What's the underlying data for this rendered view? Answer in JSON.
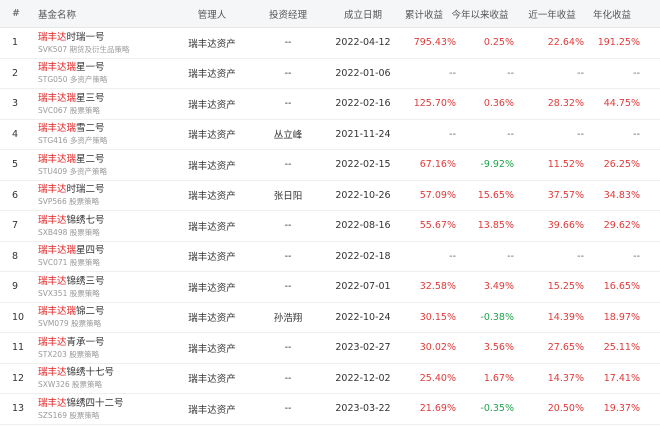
{
  "headers": {
    "idx": "#",
    "name": "基金名称",
    "manager": "管理人",
    "pm": "投资经理",
    "date": "成立日期",
    "cum": "累计收益",
    "ytd": "今年以来收益",
    "yr": "近一年收益",
    "ann": "年化收益"
  },
  "colors": {
    "positive": "#e03a3a",
    "negative": "#1ea34a",
    "highlight": "#e02020"
  },
  "rows": [
    {
      "idx": "1",
      "hl": "瑞丰达",
      "rest": "时瑞一号",
      "code": "SVK507",
      "strategy": "期货及衍生品策略",
      "manager": "瑞丰达资产",
      "pm": "--",
      "date": "2022-04-12",
      "cum": "795.43%",
      "ytd": "0.25%",
      "yr": "22.64%",
      "ann": "191.25%"
    },
    {
      "idx": "2",
      "hl": "瑞丰达瑞",
      "rest": "星一号",
      "code": "STG050",
      "strategy": "多资产策略",
      "manager": "瑞丰达资产",
      "pm": "--",
      "date": "2022-01-06",
      "cum": "--",
      "ytd": "--",
      "yr": "--",
      "ann": "--"
    },
    {
      "idx": "3",
      "hl": "瑞丰达瑞",
      "rest": "星三号",
      "code": "SVC067",
      "strategy": "股票策略",
      "manager": "瑞丰达资产",
      "pm": "--",
      "date": "2022-02-16",
      "cum": "125.70%",
      "ytd": "0.36%",
      "yr": "28.32%",
      "ann": "44.75%"
    },
    {
      "idx": "4",
      "hl": "瑞丰达瑞",
      "rest": "雪二号",
      "code": "STG416",
      "strategy": "多资产策略",
      "manager": "瑞丰达资产",
      "pm": "丛立峰",
      "date": "2021-11-24",
      "cum": "--",
      "ytd": "--",
      "yr": "--",
      "ann": "--"
    },
    {
      "idx": "5",
      "hl": "瑞丰达瑞",
      "rest": "星二号",
      "code": "STU409",
      "strategy": "多资产策略",
      "manager": "瑞丰达资产",
      "pm": "--",
      "date": "2022-02-15",
      "cum": "67.16%",
      "ytd": "-9.92%",
      "yr": "11.52%",
      "ann": "26.25%"
    },
    {
      "idx": "6",
      "hl": "瑞丰达",
      "rest": "时瑞二号",
      "code": "SVP566",
      "strategy": "股票策略",
      "manager": "瑞丰达资产",
      "pm": "张日阳",
      "date": "2022-10-26",
      "cum": "57.09%",
      "ytd": "15.65%",
      "yr": "37.57%",
      "ann": "34.83%"
    },
    {
      "idx": "7",
      "hl": "瑞丰达",
      "rest": "锦绣七号",
      "code": "SXB498",
      "strategy": "股票策略",
      "manager": "瑞丰达资产",
      "pm": "--",
      "date": "2022-08-16",
      "cum": "55.67%",
      "ytd": "13.85%",
      "yr": "39.66%",
      "ann": "29.62%"
    },
    {
      "idx": "8",
      "hl": "瑞丰达瑞",
      "rest": "星四号",
      "code": "SVC071",
      "strategy": "股票策略",
      "manager": "瑞丰达资产",
      "pm": "--",
      "date": "2022-02-18",
      "cum": "--",
      "ytd": "--",
      "yr": "--",
      "ann": "--"
    },
    {
      "idx": "9",
      "hl": "瑞丰达",
      "rest": "锦绣三号",
      "code": "SVX351",
      "strategy": "股票策略",
      "manager": "瑞丰达资产",
      "pm": "--",
      "date": "2022-07-01",
      "cum": "32.58%",
      "ytd": "3.49%",
      "yr": "15.25%",
      "ann": "16.65%"
    },
    {
      "idx": "10",
      "hl": "瑞丰达瑞",
      "rest": "锦二号",
      "code": "SVM079",
      "strategy": "股票策略",
      "manager": "瑞丰达资产",
      "pm": "孙浩翔",
      "date": "2022-10-24",
      "cum": "30.15%",
      "ytd": "-0.38%",
      "yr": "14.39%",
      "ann": "18.97%"
    },
    {
      "idx": "11",
      "hl": "瑞丰达",
      "rest": "青承一号",
      "code": "STX203",
      "strategy": "股票策略",
      "manager": "瑞丰达资产",
      "pm": "--",
      "date": "2023-02-27",
      "cum": "30.02%",
      "ytd": "3.56%",
      "yr": "27.65%",
      "ann": "25.11%"
    },
    {
      "idx": "12",
      "hl": "瑞丰达",
      "rest": "锦绣十七号",
      "code": "SXW326",
      "strategy": "股票策略",
      "manager": "瑞丰达资产",
      "pm": "--",
      "date": "2022-12-02",
      "cum": "25.40%",
      "ytd": "1.67%",
      "yr": "14.37%",
      "ann": "17.41%"
    },
    {
      "idx": "13",
      "hl": "瑞丰达",
      "rest": "锦绣四十二号",
      "code": "SZS169",
      "strategy": "股票策略",
      "manager": "瑞丰达资产",
      "pm": "--",
      "date": "2023-03-22",
      "cum": "21.69%",
      "ytd": "-0.35%",
      "yr": "20.50%",
      "ann": "19.37%"
    }
  ]
}
